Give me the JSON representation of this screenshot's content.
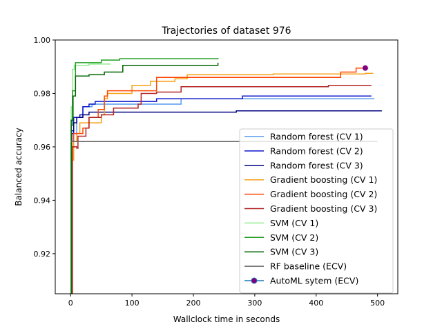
{
  "chart_data": {
    "type": "line",
    "title": "Trajectories of dataset 976",
    "xlabel": "Wallclock time in seconds",
    "ylabel": "Balanced accuracy",
    "xlim": [
      -25,
      533
    ],
    "ylim": [
      0.905,
      1.0
    ],
    "xticks": [
      0,
      100,
      200,
      300,
      400,
      500
    ],
    "yticks": [
      0.92,
      0.94,
      0.96,
      0.98,
      1.0
    ],
    "xtick_labels": [
      "0",
      "100",
      "200",
      "300",
      "400",
      "500"
    ],
    "ytick_labels": [
      "0.92",
      "0.94",
      "0.96",
      "0.98",
      "1.00"
    ],
    "grid": false,
    "legend_position": "lower-right",
    "series": [
      {
        "name": "Random forest (CV 1)",
        "color": "#5599ee",
        "points": [
          [
            0,
            0.905
          ],
          [
            1,
            0.958
          ],
          [
            2,
            0.962
          ],
          [
            5,
            0.965
          ],
          [
            10,
            0.971
          ],
          [
            20,
            0.975
          ],
          [
            35,
            0.976
          ],
          [
            170,
            0.976
          ],
          [
            180,
            0.978
          ],
          [
            495,
            0.978
          ]
        ]
      },
      {
        "name": "Random forest (CV 2)",
        "color": "#0a14cc",
        "points": [
          [
            0,
            0.952
          ],
          [
            2,
            0.965
          ],
          [
            5,
            0.971
          ],
          [
            15,
            0.972
          ],
          [
            20,
            0.975
          ],
          [
            30,
            0.976
          ],
          [
            40,
            0.977
          ],
          [
            140,
            0.978
          ],
          [
            280,
            0.979
          ],
          [
            490,
            0.979
          ]
        ]
      },
      {
        "name": "Random forest (CV 3)",
        "color": "#000080",
        "points": [
          [
            0,
            0.966
          ],
          [
            5,
            0.969
          ],
          [
            10,
            0.971
          ],
          [
            20,
            0.972
          ],
          [
            30,
            0.973
          ],
          [
            270,
            0.9735
          ],
          [
            507,
            0.9735
          ]
        ]
      },
      {
        "name": "Gradient boosting (CV 1)",
        "color": "#f5a014",
        "points": [
          [
            0,
            0.905
          ],
          [
            2,
            0.955
          ],
          [
            5,
            0.962
          ],
          [
            10,
            0.965
          ],
          [
            15,
            0.969
          ],
          [
            50,
            0.972
          ],
          [
            55,
            0.978
          ],
          [
            60,
            0.98
          ],
          [
            85,
            0.98
          ],
          [
            100,
            0.983
          ],
          [
            130,
            0.9845
          ],
          [
            170,
            0.9855
          ],
          [
            190,
            0.987
          ],
          [
            330,
            0.9873
          ],
          [
            480,
            0.9875
          ],
          [
            493,
            0.9875
          ]
        ]
      },
      {
        "name": "Gradient boosting (CV 2)",
        "color": "#ff4500",
        "points": [
          [
            0,
            0.905
          ],
          [
            2,
            0.962
          ],
          [
            5,
            0.965
          ],
          [
            20,
            0.967
          ],
          [
            30,
            0.971
          ],
          [
            45,
            0.974
          ],
          [
            55,
            0.979
          ],
          [
            60,
            0.981
          ],
          [
            110,
            0.981
          ],
          [
            140,
            0.986
          ],
          [
            430,
            0.986
          ],
          [
            440,
            0.988
          ],
          [
            465,
            0.9895
          ],
          [
            485,
            0.9895
          ]
        ]
      },
      {
        "name": "Gradient boosting (CV 3)",
        "color": "#b22222",
        "points": [
          [
            0,
            0.905
          ],
          [
            3,
            0.96
          ],
          [
            10,
            0.9595
          ],
          [
            12,
            0.964
          ],
          [
            25,
            0.967
          ],
          [
            30,
            0.971
          ],
          [
            50,
            0.972
          ],
          [
            70,
            0.9745
          ],
          [
            110,
            0.976
          ],
          [
            115,
            0.98
          ],
          [
            140,
            0.9805
          ],
          [
            180,
            0.9825
          ],
          [
            410,
            0.9825
          ],
          [
            420,
            0.983
          ],
          [
            490,
            0.983
          ]
        ]
      },
      {
        "name": "SVM (CV 1)",
        "color": "#90ee90",
        "points": [
          [
            0,
            0.905
          ],
          [
            1,
            0.975
          ],
          [
            3,
            0.989
          ],
          [
            6,
            0.9905
          ],
          [
            25,
            0.9905
          ],
          [
            30,
            0.991
          ],
          [
            65,
            0.991
          ]
        ]
      },
      {
        "name": "SVM (CV 2)",
        "color": "#1f9e1f",
        "points": [
          [
            0,
            0.905
          ],
          [
            1,
            0.968
          ],
          [
            3,
            0.981
          ],
          [
            8,
            0.9915
          ],
          [
            50,
            0.9925
          ],
          [
            80,
            0.993
          ],
          [
            240,
            0.9933
          ]
        ]
      },
      {
        "name": "SVM (CV 3)",
        "color": "#006400",
        "points": [
          [
            0,
            0.905
          ],
          [
            1,
            0.97
          ],
          [
            4,
            0.979
          ],
          [
            8,
            0.9865
          ],
          [
            30,
            0.987
          ],
          [
            55,
            0.988
          ],
          [
            85,
            0.9905
          ],
          [
            240,
            0.9915
          ]
        ]
      },
      {
        "name": "RF baseline (ECV)",
        "color": "#666666",
        "points": [
          [
            0,
            0.962
          ],
          [
            500,
            0.962
          ]
        ]
      }
    ],
    "automl_series": {
      "name": "AutoML sytem (ECV)",
      "color": "#1f77b4",
      "marker_color": "#800080",
      "points": [
        [
          480,
          0.9895
        ]
      ]
    }
  }
}
